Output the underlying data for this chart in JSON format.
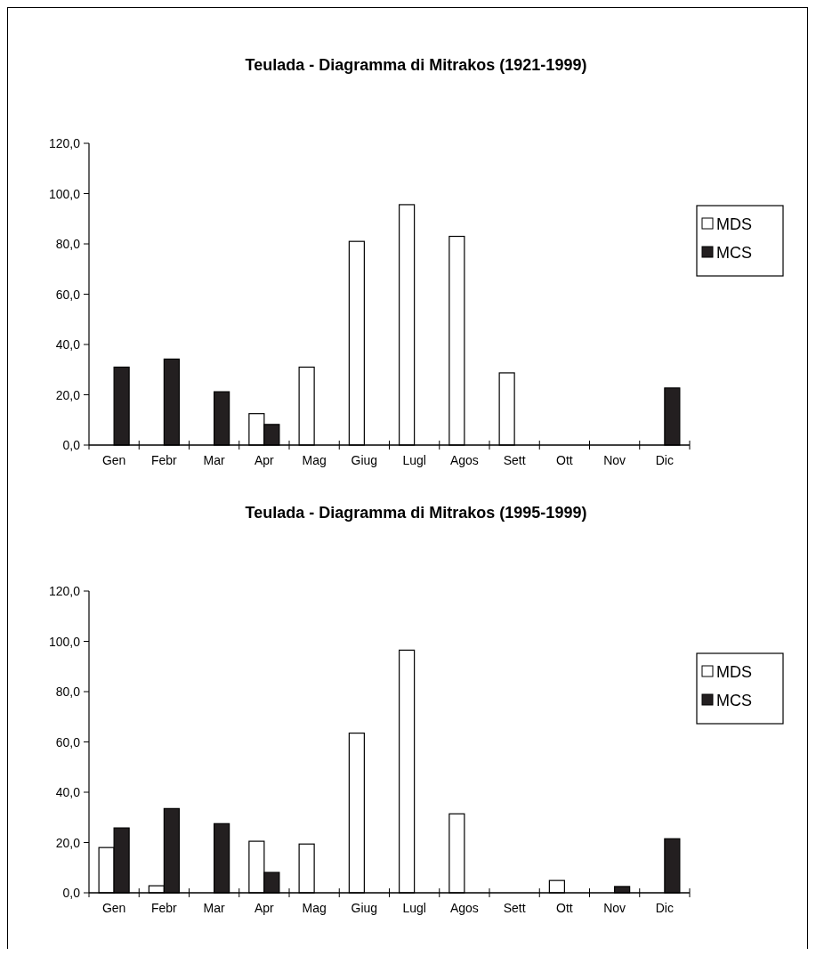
{
  "chart_data": [
    {
      "type": "bar",
      "title": "Teulada - Diagramma di Mitrakos (1921-1999)",
      "categories": [
        "Gen",
        "Febr",
        "Mar",
        "Apr",
        "Mag",
        "Giug",
        "Lugl",
        "Agos",
        "Sett",
        "Ott",
        "Nov",
        "Dic"
      ],
      "series": [
        {
          "name": "MDS",
          "color": "#ffffff",
          "values": [
            0,
            0,
            0,
            12.5,
            31,
            81,
            95.6,
            83,
            28.7,
            0,
            0,
            0
          ]
        },
        {
          "name": "MCS",
          "color": "#231f20",
          "values": [
            31,
            34.2,
            21.2,
            8.2,
            0,
            0,
            0,
            0,
            0,
            0,
            0,
            22.7
          ]
        }
      ],
      "ylim": [
        0,
        120
      ],
      "yticks": [
        {
          "value": 0,
          "label": "0,0"
        },
        {
          "value": 20,
          "label": "20,0"
        },
        {
          "value": 40,
          "label": "40,0"
        },
        {
          "value": 60,
          "label": "60,0"
        },
        {
          "value": 80,
          "label": "80,0"
        },
        {
          "value": 100,
          "label": "100,0"
        },
        {
          "value": 120,
          "label": "120,0"
        }
      ],
      "grid": false,
      "legend": "right"
    },
    {
      "type": "bar",
      "title": "Teulada - Diagramma di Mitrakos (1995-1999)",
      "categories": [
        "Gen",
        "Febr",
        "Mar",
        "Apr",
        "Mag",
        "Giug",
        "Lugl",
        "Agos",
        "Sett",
        "Ott",
        "Nov",
        "Dic"
      ],
      "series": [
        {
          "name": "MDS",
          "color": "#ffffff",
          "values": [
            18,
            2.8,
            0,
            20.5,
            19.4,
            63.5,
            96.5,
            31.4,
            0,
            4.9,
            0,
            0
          ]
        },
        {
          "name": "MCS",
          "color": "#231f20",
          "values": [
            25.8,
            33.5,
            27.5,
            8.1,
            0,
            0,
            0,
            0,
            0,
            0,
            2.5,
            21.5
          ]
        }
      ],
      "ylim": [
        0,
        120
      ],
      "yticks": [
        {
          "value": 0,
          "label": "0,0"
        },
        {
          "value": 20,
          "label": "20,0"
        },
        {
          "value": 40,
          "label": "40,0"
        },
        {
          "value": 60,
          "label": "60,0"
        },
        {
          "value": 80,
          "label": "80,0"
        },
        {
          "value": 100,
          "label": "100,0"
        },
        {
          "value": 120,
          "label": "120,0"
        }
      ],
      "grid": false,
      "legend": "right"
    }
  ]
}
